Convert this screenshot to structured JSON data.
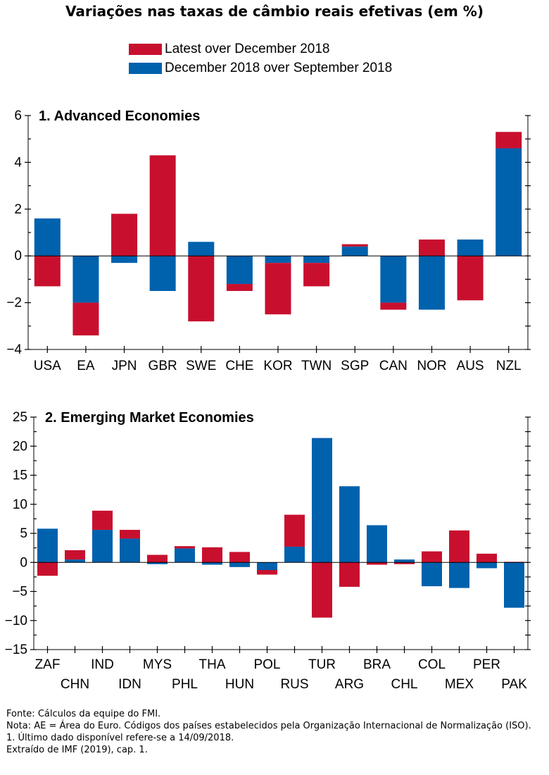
{
  "title": "Variações nas taxas de câmbio reais efetivas (em %)",
  "legend": [
    {
      "label": "Latest over December 2018",
      "color": "#c8102e"
    },
    {
      "label": "December 2018 over September 2018",
      "color": "#0061ad"
    }
  ],
  "chart_data": [
    {
      "type": "bar",
      "stacked": true,
      "title": "1. Advanced Economies",
      "ylim": [
        -4,
        6
      ],
      "yticks": [
        -4,
        -2,
        0,
        2,
        4,
        6
      ],
      "categories": [
        "USA",
        "EA",
        "JPN",
        "GBR",
        "SWE",
        "CHE",
        "KOR",
        "TWN",
        "SGP",
        "CAN",
        "NOR",
        "AUS",
        "NZL"
      ],
      "series": [
        {
          "name": "Latest over December 2018",
          "color": "#c8102e",
          "values": [
            -1.3,
            -1.4,
            1.8,
            4.3,
            -2.8,
            -0.3,
            -2.2,
            -1.0,
            0.1,
            -0.3,
            0.7,
            -1.9,
            0.7
          ]
        },
        {
          "name": "December 2018 over September 2018",
          "color": "#0061ad",
          "values": [
            1.6,
            -2.0,
            -0.3,
            -1.5,
            0.6,
            -1.2,
            -0.3,
            -0.3,
            0.4,
            -2.0,
            -2.3,
            0.7,
            4.6
          ]
        }
      ]
    },
    {
      "type": "bar",
      "stacked": true,
      "title": "2. Emerging Market Economies",
      "ylim": [
        -15,
        25
      ],
      "yticks": [
        -15,
        -10,
        -5,
        0,
        5,
        10,
        15,
        20,
        25
      ],
      "categories": [
        "ZAF",
        "CHN",
        "IND",
        "IDN",
        "MYS",
        "PHL",
        "THA",
        "HUN",
        "POL",
        "RUS",
        "TUR",
        "ARG",
        "BRA",
        "CHL",
        "COL",
        "MEX",
        "PER",
        "PAK"
      ],
      "series": [
        {
          "name": "Latest over December 2018",
          "color": "#c8102e",
          "values": [
            -2.3,
            1.6,
            3.3,
            1.5,
            1.3,
            0.4,
            2.6,
            1.8,
            -0.8,
            5.5,
            -9.5,
            -4.2,
            -0.4,
            -0.3,
            1.9,
            5.5,
            1.5,
            0.1
          ]
        },
        {
          "name": "December 2018 over September 2018",
          "color": "#0061ad",
          "values": [
            5.8,
            0.5,
            5.6,
            4.1,
            -0.3,
            2.4,
            -0.4,
            -0.8,
            -1.3,
            2.7,
            21.4,
            13.1,
            6.4,
            0.5,
            -4.1,
            -4.4,
            -1.0,
            -7.8
          ]
        }
      ]
    }
  ],
  "footnotes": [
    "Fonte: Cálculos da equipe do FMI.",
    "Nota: AE = Área do Euro. Códigos dos países estabelecidos pela Organização Internacional de Normalização (ISO).",
    "1. Último dado disponível refere-se a 14/09/2018.",
    "Extraído de IMF (2019), cap. 1."
  ]
}
